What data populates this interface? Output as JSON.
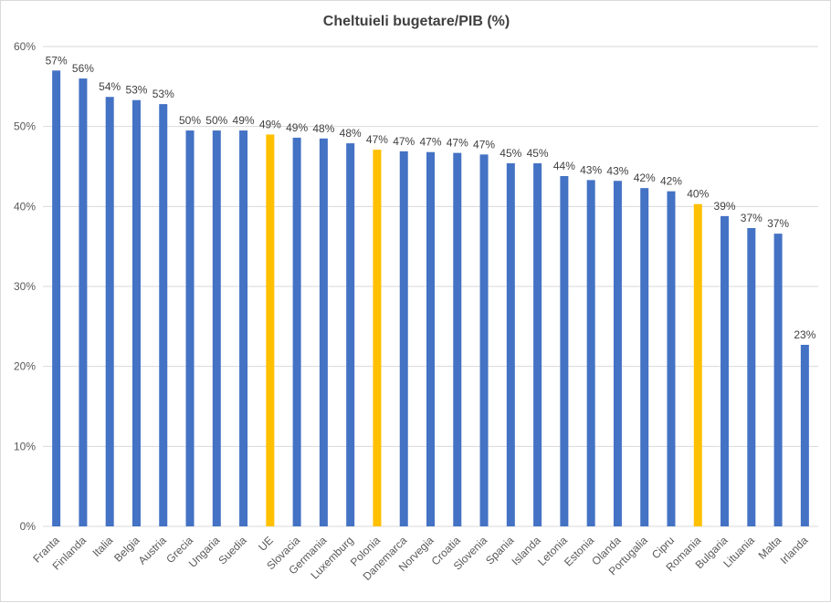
{
  "chart_data": {
    "type": "bar",
    "title": "Cheltuieli bugetare/PIB (%)",
    "xlabel": "",
    "ylabel": "",
    "ylim": [
      0,
      60
    ],
    "yticks": [
      0,
      10,
      20,
      30,
      40,
      50,
      60
    ],
    "ytick_labels": [
      "0%",
      "10%",
      "20%",
      "30%",
      "40%",
      "50%",
      "60%"
    ],
    "grid": true,
    "categories": [
      "Franta",
      "Finlanda",
      "Italia",
      "Belgia",
      "Austria",
      "Grecia",
      "Ungaria",
      "Suedia",
      "UE",
      "Slovacia",
      "Germania",
      "Luxemburg",
      "Polonia",
      "Danemarca",
      "Norvegia",
      "Croatia",
      "Slovenia",
      "Spania",
      "Islanda",
      "Letonia",
      "Estonia",
      "Olanda",
      "Portugalia",
      "Cipru",
      "Romania",
      "Bulgaria",
      "Lituania",
      "Malta",
      "Irlanda"
    ],
    "values": [
      57.0,
      56.0,
      53.7,
      53.3,
      52.8,
      49.5,
      49.5,
      49.5,
      49.0,
      48.6,
      48.5,
      47.9,
      47.1,
      46.9,
      46.8,
      46.7,
      46.5,
      45.4,
      45.4,
      43.8,
      43.3,
      43.2,
      42.3,
      41.9,
      40.3,
      38.8,
      37.3,
      36.6,
      22.7
    ],
    "data_labels": [
      "57%",
      "56%",
      "54%",
      "53%",
      "53%",
      "50%",
      "50%",
      "49%",
      "49%",
      "49%",
      "48%",
      "48%",
      "47%",
      "47%",
      "47%",
      "47%",
      "47%",
      "45%",
      "45%",
      "44%",
      "43%",
      "43%",
      "42%",
      "42%",
      "40%",
      "39%",
      "37%",
      "37%",
      "23%"
    ],
    "highlighted": [
      "UE",
      "Polonia",
      "Romania"
    ],
    "colors": {
      "default": "#4472c4",
      "highlight": "#ffc000"
    }
  }
}
